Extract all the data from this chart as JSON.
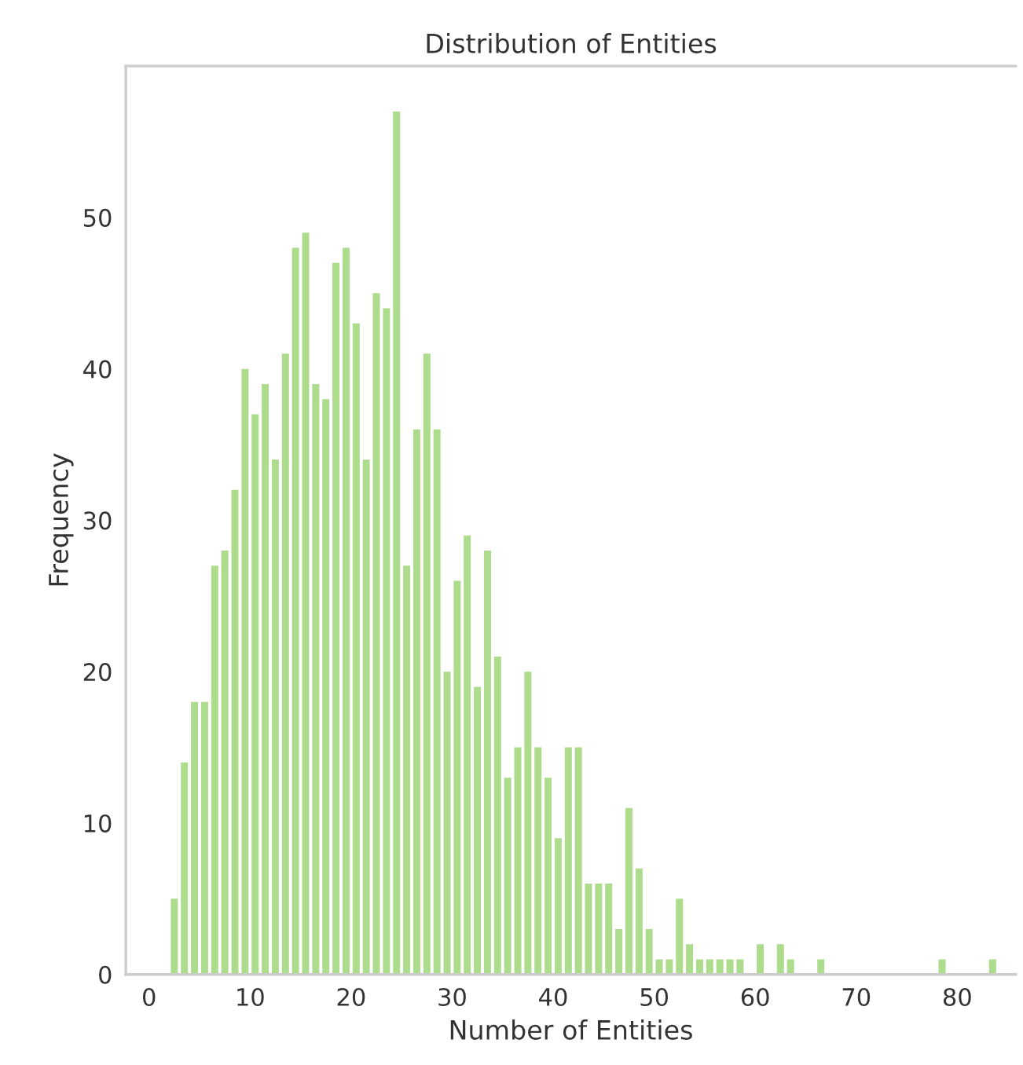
{
  "chart_data": {
    "type": "histogram",
    "title": "Distribution of Entities",
    "xlabel": "Number of Entities",
    "ylabel": "Frequency",
    "bins": [
      2,
      3,
      4,
      5,
      6,
      7,
      8,
      9,
      10,
      11,
      12,
      13,
      14,
      15,
      16,
      17,
      18,
      19,
      20,
      21,
      22,
      23,
      24,
      25,
      26,
      27,
      28,
      29,
      30,
      31,
      32,
      33,
      34,
      35,
      36,
      37,
      38,
      39,
      40,
      41,
      42,
      43,
      44,
      45,
      46,
      47,
      48,
      49,
      50,
      51,
      52,
      53,
      54,
      55,
      56,
      57,
      58,
      59,
      60,
      61,
      62,
      63,
      64,
      65,
      66,
      67,
      68,
      69,
      70,
      71,
      72,
      73,
      74,
      75,
      76,
      77,
      78,
      79,
      80,
      81,
      82,
      83,
      84
    ],
    "values": [
      5,
      14,
      18,
      18,
      27,
      28,
      32,
      40,
      37,
      39,
      34,
      41,
      48,
      49,
      39,
      38,
      47,
      48,
      43,
      34,
      45,
      44,
      57,
      27,
      36,
      41,
      36,
      20,
      26,
      29,
      19,
      28,
      21,
      13,
      15,
      20,
      15,
      13,
      9,
      15,
      15,
      6,
      6,
      6,
      3,
      11,
      7,
      3,
      1,
      1,
      5,
      2,
      1,
      1,
      1,
      1,
      1,
      0,
      2,
      0,
      2,
      1,
      0,
      0,
      1,
      0,
      0,
      0,
      0,
      0,
      0,
      0,
      0,
      0,
      0,
      0,
      1,
      0,
      0,
      0,
      0,
      1
    ],
    "color": "#acdc8c",
    "xlim": [
      -2.3,
      85.8
    ],
    "ylim": [
      0,
      60
    ],
    "xticks": [
      0,
      10,
      20,
      30,
      40,
      50,
      60,
      70,
      80
    ],
    "yticks": [
      0,
      10,
      20,
      30,
      40,
      50
    ],
    "grid": false
  }
}
